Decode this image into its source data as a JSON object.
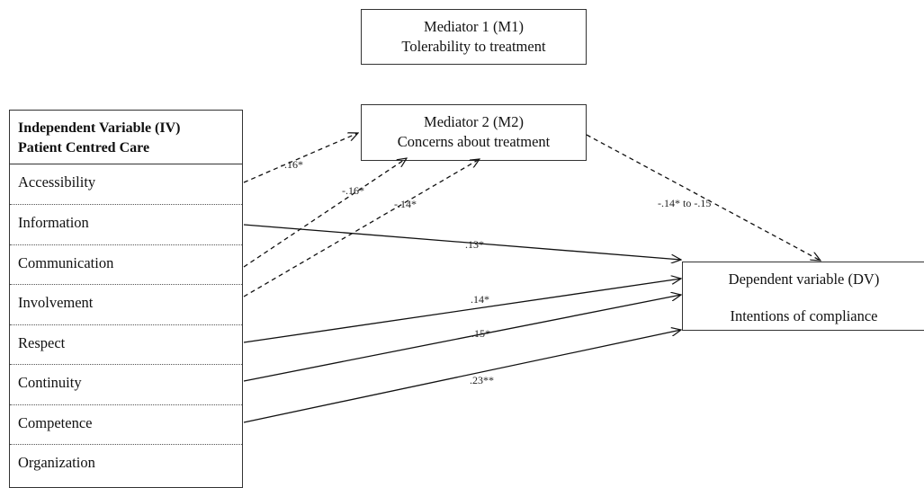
{
  "mediator1": {
    "title": "Mediator 1 (M1)",
    "subtitle": "Tolerability to treatment"
  },
  "mediator2": {
    "title": "Mediator 2 (M2)",
    "subtitle": "Concerns about treatment"
  },
  "independent": {
    "header_line1": "Independent Variable (IV)",
    "header_line2": "Patient Centred Care",
    "rows": [
      "Accessibility",
      "Information",
      "Communication",
      "Involvement",
      "Respect",
      "Continuity",
      "Competence",
      "Organization"
    ]
  },
  "dependent": {
    "title": "Dependent variable (DV)",
    "subtitle": "Intentions of compliance"
  },
  "paths": {
    "accessibility_m2": "-.16*",
    "communication_m2": "-.16*",
    "involvement_m2": "-.14*",
    "m2_dv": "-.14* to -.15",
    "information_dv": ".13*",
    "respect_dv": ".14*",
    "continuity_dv": ".15*",
    "competence_dv": ".23**"
  }
}
